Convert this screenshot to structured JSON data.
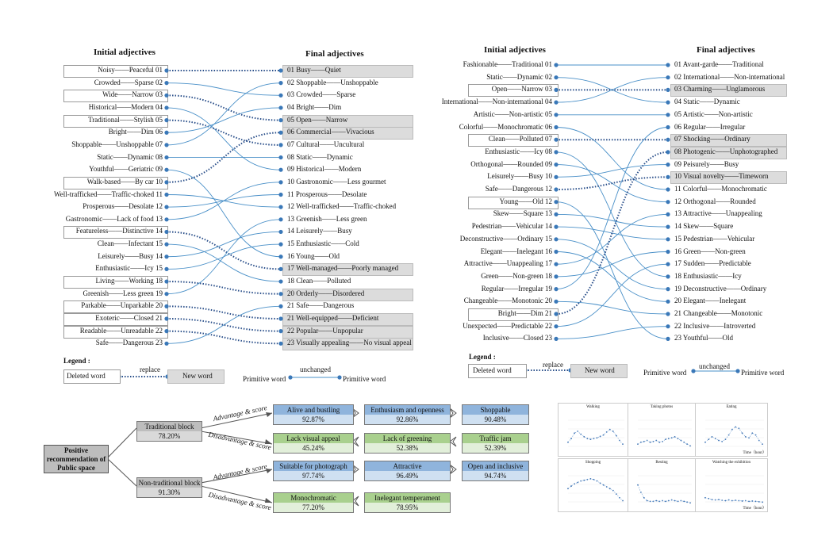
{
  "left_diagram": {
    "header_initial": "Initial adjectives",
    "header_final": "Final adjectives",
    "initial": [
      "Noisy——Peaceful 01",
      "Crowded——Sparse 02",
      "Wide——Narrow 03",
      "Historical——Modern 04",
      "Traditional——Stylish 05",
      "Bright——Dim 06",
      "Shoppable——Unshoppable 07",
      "Static——Dynamic 08",
      "Youthful——Geriatric 09",
      "Walk-based——By car 10",
      "Well-trafficked——Traffic-choked 11",
      "Prosperous——Desolate 12",
      "Gastronomic——Lack of food 13",
      "Featureless——Distinctive 14",
      "Clean——Infectant 15",
      "Leisurely——Busy 14",
      "Enthusiastic——Icy 15",
      "Living——Working 18",
      "Greenish——Less green 19",
      "Parkable——Unparkable 20",
      "Exoteric——Closed 21",
      "Readable——Unreadable 22",
      "Safe——Dangerous 23"
    ],
    "final": [
      "01 Busy——Quiet",
      "02 Shoppable——Unshoppable",
      "03 Crowded——Sparse",
      "04 Bright——Dim",
      "05 Open——Narrow",
      "06 Commercial——Vivacious",
      "07 Cultural——Uncultural",
      "08 Static——Dynamic",
      "09 Historical——Modern",
      "10 Gastronomic——Less gourmet",
      "11 Prosperous——Desolate",
      "12 Well-trafficked——Traffic-choked",
      "13 Greenish——Less green",
      "14 Leisurely——Busy",
      "15 Enthusiastic——Cold",
      "16 Young——Old",
      "17 Well-managed——Poorly managed",
      "18 Clean——Polluted",
      "20 Orderly——Disordered",
      "21 Safe——Dangerous",
      "21 Well-equipped——Deficient",
      "22 Popular——Unpopular",
      "23 Visually appealing——No visual appeal"
    ]
  },
  "right_diagram": {
    "header_initial": "Initial adjectives",
    "header_final": "Final adjectives",
    "initial": [
      "Fashionable——Traditional 01",
      "Static——Dynamic 02",
      "Open——Narrow 03",
      "International——Non-international 04",
      "Artistic——Non-artistic 05",
      "Colorful——Monochromatic 06",
      "Clean——Polluted 07",
      "Enthusiastic——Icy 08",
      "Orthogonal——Rounded 09",
      "Leisurely——Busy 10",
      "Safe——Dangerous 12",
      "Young——Old 12",
      "Skew——Square 13",
      "Pedestrian——Vehicular 14",
      "Deconstructive——Ordinary 15",
      "Elegant——Inelegant 16",
      "Attractive——Unappealing 17",
      "Green——Non-green 18",
      "Regular——Irregular 19",
      "Changeable——Monotonic 20",
      "Bright——Dim 21",
      "Unexpected——Predictable 22",
      "Inclusive——Closed 23"
    ],
    "final": [
      "01 Avant-garde——Traditional",
      "02 International——Non-international",
      "03 Charming——Unglamorous",
      "04 Static——Dynamic",
      "05 Artistic——Non-artistic",
      "06 Regular——Irregular",
      "07 Shocking——Ordinary",
      "08 Photogenic——Unphotographed",
      "09 Peisurely——Busy",
      "10 Visual novelty——Timeworn",
      "11 Colorful——Monochromatic",
      "12 Orthogonal——Rounded",
      "13 Attractive——Unappealing",
      "14 Skew——Square",
      "15 Pedestrian——Vehicular",
      "16 Green——Non-green",
      "17 Sudden——Predictable",
      "18 Enthusiastic——Icy",
      "19 Deconstructive——Ordinary",
      "20 Elegant——Inelegant",
      "21 Changeable——Monotonic",
      "22 Inclusive——Introverted",
      "23 Youthful——Old"
    ]
  },
  "legend": {
    "title": "Legend :",
    "deleted_word": "Deleted word",
    "replace": "replace",
    "new_word": "New word",
    "primitive_word_left": "Primitive word",
    "unchanged": "unchanged",
    "primitive_word_right": "Primitive word"
  },
  "flow": {
    "root": "Positive recommendation of Public space",
    "traditional": {
      "label": "Traditional block",
      "score": "78.20%"
    },
    "non_traditional": {
      "label": "Non-traditional block",
      "score": "91.30%"
    },
    "advantage": "Advantage & score",
    "disadvantage": "Disadvantage & score",
    "trad_adv": [
      {
        "label": "Alive and bustling",
        "score": "92.87%"
      },
      {
        "label": "Enthusiasm and openness",
        "score": "92.86%"
      },
      {
        "label": "Shoppable",
        "score": "90.48%"
      }
    ],
    "trad_dis": [
      {
        "label": "Lack visual appeal",
        "score": "45.24%"
      },
      {
        "label": "Lack of greening",
        "score": "52.38%"
      },
      {
        "label": "Traffic jam",
        "score": "52.39%"
      }
    ],
    "nontrad_adv": [
      {
        "label": "Suitable for photograph",
        "score": "97.74%"
      },
      {
        "label": "Attractive",
        "score": "96.49%"
      },
      {
        "label": "Open and inclusive",
        "score": "94.74%"
      }
    ],
    "nontrad_dis": [
      {
        "label": "Monochromatic",
        "score": "77.20%"
      },
      {
        "label": "Inelegant temperament",
        "score": "78.95%"
      }
    ]
  },
  "mini_charts": {
    "titles": [
      "Walking",
      "Taking photos",
      "Eating",
      "Shopping",
      "Resting",
      "Watching the exhibition"
    ],
    "xlabel": "Time（hour）"
  }
}
